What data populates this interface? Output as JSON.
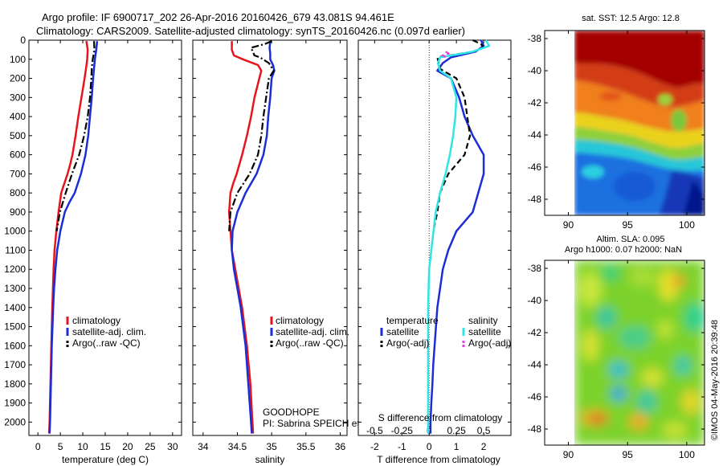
{
  "header": {
    "title_line1": "Argo profile: IF 6900717_202 26-Apr-2016 20160426_679 43.081S 94.461E",
    "title_line2": "Climatology: CARS2009. Satellite-adjusted climatology: synTS_20160426.nc (0.097d earlier)"
  },
  "colors": {
    "climatology": "#e8141b",
    "satellite": "#1b2ed6",
    "argo": "#000000",
    "salinity_satellite": "#2fe6e6",
    "salinity_argo": "#e040e0"
  },
  "depth_ticks": [
    "0",
    "100",
    "200",
    "300",
    "400",
    "500",
    "600",
    "700",
    "800",
    "900",
    "1000",
    "1100",
    "1200",
    "1300",
    "1400",
    "1500",
    "1600",
    "1700",
    "1800",
    "1900",
    "2000"
  ],
  "chart_data": [
    {
      "type": "line",
      "id": "temperature",
      "xlabel": "temperature (deg C)",
      "xlim": [
        -2,
        32
      ],
      "ylim": [
        2070,
        0
      ],
      "y_reversed": true,
      "xticks": [
        "0",
        "5",
        "10",
        "15",
        "20",
        "25",
        "30"
      ],
      "legend": [
        "climatology",
        "satellite-adj. clim.",
        "Argo(..raw -QC)"
      ],
      "series": [
        {
          "name": "climatology",
          "color": "#e8141b",
          "dash": "solid",
          "depth": [
            5,
            50,
            100,
            150,
            200,
            300,
            400,
            500,
            600,
            650,
            700,
            750,
            800,
            900,
            1000,
            1100,
            1200,
            1400,
            1600,
            1800,
            2000,
            2060
          ],
          "values": [
            10.8,
            11.1,
            11.0,
            10.7,
            10.4,
            9.7,
            9.0,
            8.4,
            7.7,
            7.2,
            6.6,
            5.9,
            5.2,
            4.6,
            4.1,
            3.7,
            3.5,
            3.2,
            3.0,
            2.8,
            2.6,
            2.5
          ]
        },
        {
          "name": "satellite-adj. clim.",
          "color": "#1b2ed6",
          "dash": "solid",
          "depth": [
            5,
            50,
            100,
            150,
            200,
            300,
            400,
            500,
            600,
            700,
            800,
            850,
            900,
            1000,
            1100,
            1200,
            1300,
            1400,
            1600,
            1800,
            2000,
            2060
          ],
          "values": [
            13.2,
            13.0,
            12.7,
            12.5,
            12.3,
            12.0,
            11.6,
            11.2,
            10.6,
            9.6,
            8.2,
            7.0,
            6.0,
            5.0,
            4.3,
            3.9,
            3.6,
            3.4,
            3.1,
            2.9,
            2.7,
            2.6
          ]
        },
        {
          "name": "Argo(..raw -QC)",
          "color": "#000000",
          "dash": "dashdot",
          "depth": [
            5,
            50,
            100,
            150,
            200,
            300,
            400,
            500,
            600,
            700,
            800,
            900,
            1000
          ],
          "values": [
            12.5,
            12.6,
            12.2,
            12.0,
            11.9,
            11.6,
            11.1,
            10.3,
            9.2,
            7.6,
            6.2,
            4.9,
            4.2
          ]
        }
      ]
    },
    {
      "type": "line",
      "id": "salinity",
      "xlabel": "salinity",
      "xlim": [
        33.85,
        36.1
      ],
      "ylim": [
        2070,
        0
      ],
      "y_reversed": true,
      "xticks": [
        "34",
        "34.5",
        "35",
        "35.5",
        "36"
      ],
      "legend": [
        "climatology",
        "satellite-adj. clim.",
        "Argo(..raw -QC)"
      ],
      "annotations": [
        "GOODHOPE",
        "PI: Sabrina SPEICH et Michel ARHAN"
      ],
      "series": [
        {
          "name": "climatology",
          "color": "#e8141b",
          "dash": "solid",
          "depth": [
            5,
            50,
            80,
            100,
            130,
            160,
            200,
            300,
            400,
            500,
            600,
            700,
            750,
            800,
            900,
            1000,
            1100,
            1200,
            1400,
            1600,
            1800,
            2000,
            2060
          ],
          "values": [
            34.42,
            34.42,
            34.45,
            34.58,
            34.8,
            34.85,
            34.82,
            34.75,
            34.7,
            34.64,
            34.57,
            34.49,
            34.44,
            34.4,
            34.38,
            34.4,
            34.42,
            34.47,
            34.57,
            34.64,
            34.69,
            34.72,
            34.73
          ]
        },
        {
          "name": "satellite-adj. clim.",
          "color": "#1b2ed6",
          "dash": "solid",
          "depth": [
            5,
            40,
            70,
            100,
            130,
            160,
            200,
            300,
            400,
            500,
            600,
            700,
            800,
            900,
            1000,
            1100,
            1200,
            1400,
            1600,
            1800,
            2000,
            2060
          ],
          "values": [
            34.98,
            34.97,
            34.98,
            34.98,
            35.02,
            35.04,
            35.0,
            34.98,
            34.95,
            34.93,
            34.88,
            34.78,
            34.62,
            34.5,
            34.43,
            34.42,
            34.45,
            34.55,
            34.62,
            34.66,
            34.7,
            34.71
          ]
        },
        {
          "name": "Argo(..raw -QC)",
          "color": "#000000",
          "dash": "dashdot",
          "depth": [
            5,
            20,
            40,
            80,
            90,
            120,
            160,
            200,
            300,
            400,
            500,
            600,
            700,
            800,
            900,
            1000
          ],
          "values": [
            35.0,
            34.9,
            34.7,
            34.75,
            34.83,
            34.96,
            35.03,
            34.96,
            34.92,
            34.88,
            34.85,
            34.8,
            34.68,
            34.5,
            34.4,
            34.38
          ]
        }
      ]
    },
    {
      "type": "line",
      "id": "differences",
      "xlabel": "T difference from climatology",
      "secondary_label": "S difference from climatology",
      "xlim": [
        -2.6,
        3.0
      ],
      "ylim": [
        2070,
        0
      ],
      "y_reversed": true,
      "xticks": [
        "-2",
        "-1",
        "0",
        "1",
        "2"
      ],
      "secondary_xticks": [
        "-0.5",
        "-0.25",
        "0",
        "0.25",
        "0.5"
      ],
      "legend_headers": [
        "temperature",
        "salinity"
      ],
      "legend": [
        "satellite",
        "Argo(-adj)",
        "satellite",
        "Argo(-adj)"
      ],
      "series": [
        {
          "name": "satellite",
          "group": "temperature",
          "color": "#1b2ed6",
          "dash": "solid",
          "depth": [
            0,
            30,
            60,
            90,
            120,
            160,
            200,
            300,
            400,
            500,
            600,
            700,
            800,
            900,
            1000,
            1100,
            1200,
            1300,
            1400,
            1500,
            1600,
            1700,
            1800,
            1900,
            2000,
            2060
          ],
          "values": [
            1.9,
            2.0,
            1.7,
            0.8,
            0.5,
            0.3,
            0.8,
            1.1,
            1.3,
            1.6,
            2.0,
            2.0,
            1.8,
            1.6,
            1.0,
            0.7,
            0.5,
            0.4,
            0.3,
            0.25,
            0.2,
            0.15,
            0.12,
            0.08,
            0.05,
            0.05
          ]
        },
        {
          "name": "Argo(-adj)",
          "group": "temperature",
          "color": "#000000",
          "dash": "dashed",
          "depth": [
            0,
            20,
            40,
            60,
            90,
            150,
            200,
            300,
            400,
            500,
            600,
            700,
            800,
            900,
            1000
          ],
          "values": [
            1.6,
            1.9,
            2.0,
            1.6,
            0.3,
            0.4,
            1.0,
            1.3,
            1.4,
            1.5,
            1.3,
            0.7,
            0.4,
            0.3,
            0.15
          ]
        },
        {
          "name": "satellite",
          "group": "salinity",
          "color": "#2fe6e6",
          "dash": "solid",
          "depth": [
            0,
            30,
            60,
            90,
            120,
            160,
            200,
            300,
            400,
            500,
            600,
            700,
            800,
            900,
            1000,
            1200,
            1400,
            1600,
            1800,
            2000,
            2060
          ],
          "values": [
            0.52,
            0.55,
            0.4,
            0.1,
            0.08,
            0.1,
            0.2,
            0.25,
            0.24,
            0.22,
            0.19,
            0.15,
            0.1,
            0.06,
            0.04,
            0.0,
            -0.01,
            -0.01,
            -0.01,
            -0.01,
            -0.01
          ]
        },
        {
          "name": "Argo(-adj)",
          "group": "salinity",
          "color": "#e040e0",
          "dash": "dashed",
          "depth": [
            60,
            70,
            80,
            90
          ],
          "values": [
            0.15,
            0.18,
            0.12,
            0.16
          ]
        }
      ]
    },
    {
      "type": "heatmap",
      "id": "sst_map",
      "title": "sat. SST: 12.5 Argo: 12.8",
      "xlim": [
        88,
        101.5
      ],
      "ylim": [
        -49,
        -37.5
      ],
      "xticks": [
        "90",
        "95",
        "100"
      ],
      "yticks": [
        "-38",
        "-40",
        "-42",
        "-44",
        "-46",
        "-48"
      ]
    },
    {
      "type": "heatmap",
      "id": "sla_map",
      "title_line1": "Altim. SLA: 0.095",
      "title_line2": "Argo h1000: 0.07 h2000: NaN",
      "xlim": [
        88,
        101.5
      ],
      "ylim": [
        -49,
        -37.5
      ],
      "xticks": [
        "90",
        "95",
        "100"
      ],
      "yticks": [
        "-38",
        "-40",
        "-42",
        "-44",
        "-46",
        "-48"
      ]
    }
  ],
  "credit": "©IMOS 04-May-2016 20:39:48"
}
